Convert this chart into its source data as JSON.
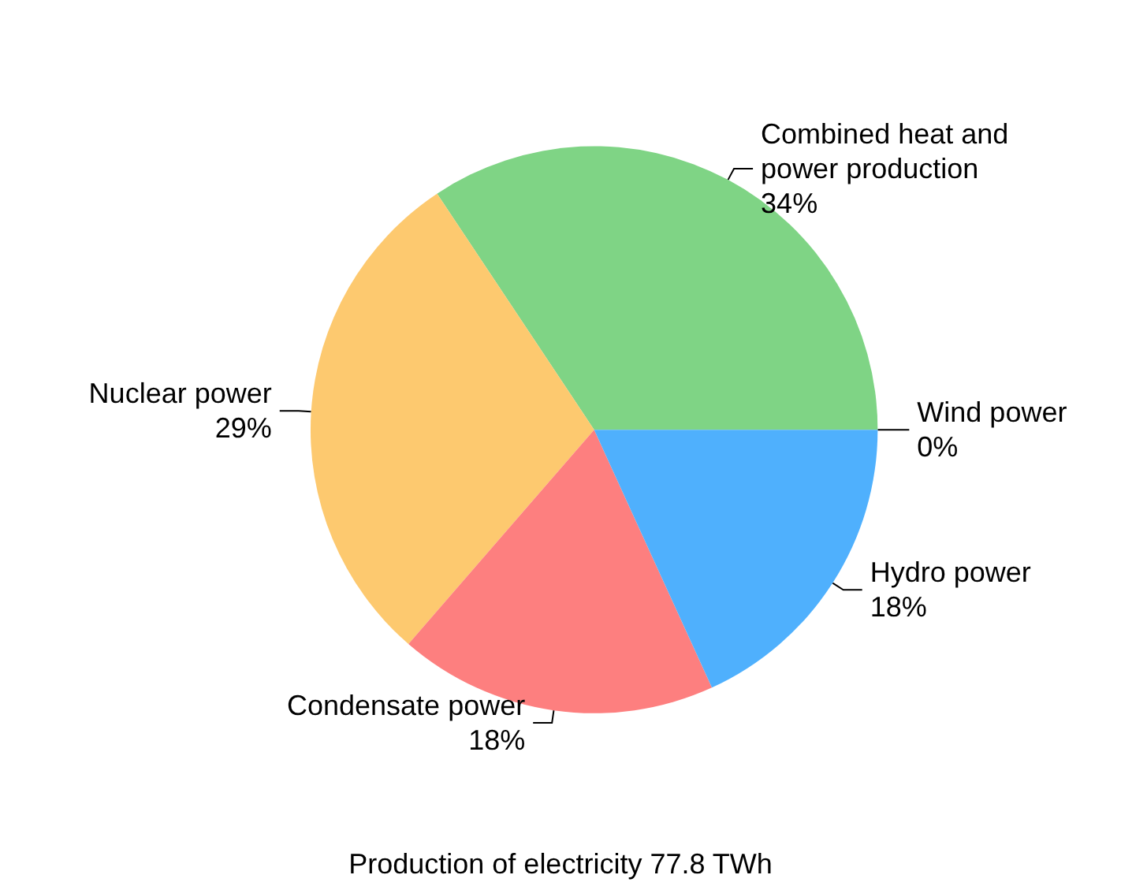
{
  "chart_data": {
    "type": "pie",
    "title": "Production of electricity 77.8 TWh",
    "categories": [
      "Combined heat and power production",
      "Nuclear power",
      "Condensate power",
      "Hydro power",
      "Wind power"
    ],
    "values": [
      34,
      29,
      18,
      18,
      0
    ],
    "value_labels": [
      "34%",
      "29%",
      "18%",
      "18%",
      "0%"
    ],
    "colors": [
      "#7fd485",
      "#fdc96f",
      "#fd7f7f",
      "#4fb0fd",
      "#3b6fa8"
    ]
  }
}
